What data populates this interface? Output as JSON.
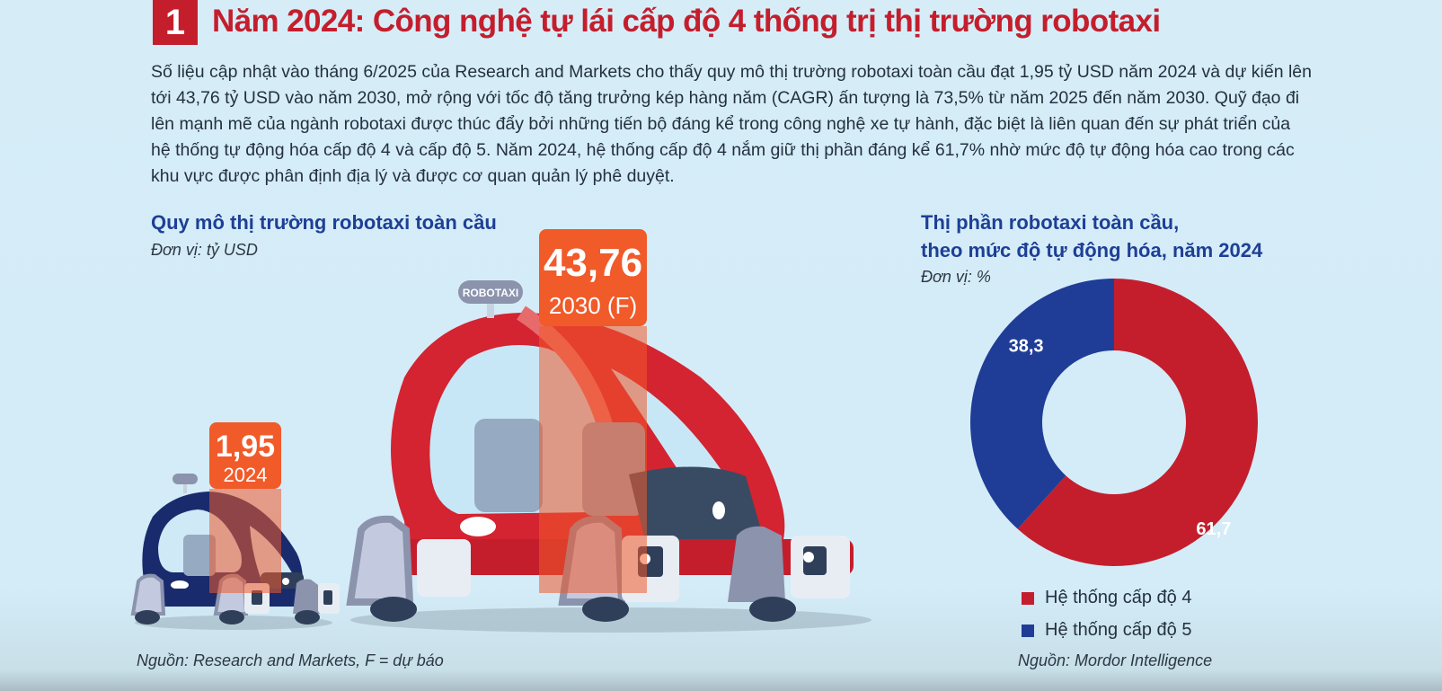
{
  "header": {
    "number": "1",
    "title": "Năm 2024: Công nghệ tự lái cấp độ 4 thống trị thị trường robotaxi"
  },
  "intro": "Số liệu cập nhật vào tháng 6/2025 của Research and Markets cho thấy quy mô thị trường robotaxi toàn cầu đạt 1,95 tỷ USD năm 2024 và dự kiến lên tới 43,76 tỷ USD vào năm 2030, mở rộng với tốc độ tăng trưởng kép hàng năm (CAGR) ấn tượng là 73,5% từ năm 2025 đến năm 2030. Quỹ đạo đi lên mạnh mẽ của ngành robotaxi được thúc đẩy bởi những tiến bộ đáng kể trong công nghệ xe tự hành, đặc biệt là liên quan đến sự phát triển của hệ thống tự động hóa cấp độ 4 và cấp độ 5. Năm 2024, hệ thống cấp độ 4 nắm giữ thị phần đáng kể 61,7% nhờ mức độ tự động hóa cao trong các khu vực được phân định địa lý và được cơ quan quản lý phê duyệt.",
  "colors": {
    "red": "#c41e2d",
    "blue": "#1f3d96",
    "orange": "#f15a29"
  },
  "chart_data": [
    {
      "type": "bar",
      "title": "Quy mô thị trường robotaxi toàn cầu",
      "unit": "Đơn vị: tỷ USD",
      "categories": [
        "2024",
        "2030 (F)"
      ],
      "values": [
        1.95,
        43.76
      ],
      "value_labels": [
        "1,95",
        "43,76"
      ],
      "car_sign": "ROBOTAXI",
      "source": "Nguồn: Research and Markets, F = dự báo"
    },
    {
      "type": "pie",
      "title_lines": [
        "Thị phần robotaxi toàn cầu,",
        "theo mức độ tự động hóa, năm 2024"
      ],
      "unit": "Đơn vị: %",
      "labels": [
        "Hệ thống cấp độ 4",
        "Hệ thống cấp độ 5"
      ],
      "values": [
        61.7,
        38.3
      ],
      "value_labels": [
        "61,7",
        "38,3"
      ],
      "colors": [
        "#c41e2d",
        "#1f3d96"
      ],
      "source": "Nguồn: Mordor Intelligence"
    }
  ]
}
